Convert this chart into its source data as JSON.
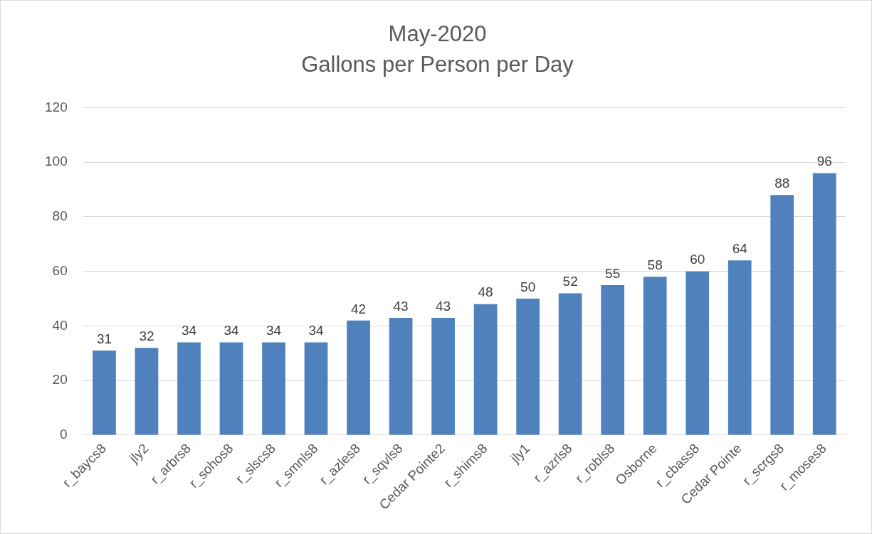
{
  "chart_data": {
    "type": "bar",
    "title": "May-2020",
    "subtitle": "Gallons per Person per Day",
    "categories": [
      "r_baycs8",
      "jly2",
      "r_arbrs8",
      "r_sohos8",
      "r_slscs8",
      "r_smnls8",
      "r_azles8",
      "r_sqvls8",
      "Cedar Pointe2",
      "r_shims8",
      "jly1",
      "r_azrls8",
      "r_robls8",
      "Osborne",
      "r_cbass8",
      "Cedar Pointe",
      "r_scrgs8",
      "r_moses8"
    ],
    "values": [
      31,
      32,
      34,
      34,
      34,
      34,
      42,
      43,
      43,
      48,
      50,
      52,
      55,
      58,
      60,
      64,
      88,
      96
    ],
    "color": "#4f81bd",
    "ylim": [
      0,
      120
    ],
    "yticks": [
      0,
      20,
      40,
      60,
      80,
      100,
      120
    ],
    "grid": "y",
    "data_labels": true,
    "legend": false
  }
}
